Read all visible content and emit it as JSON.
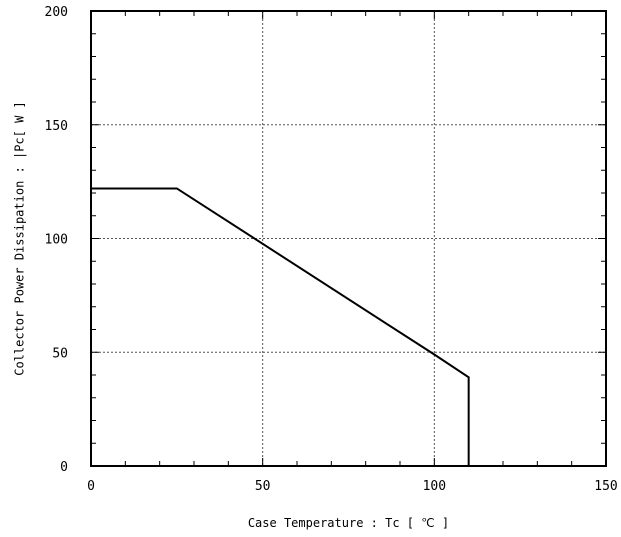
{
  "chart_data": {
    "type": "line",
    "title": "",
    "xlabel": "Case Temperature : Tc [ ℃ ]",
    "ylabel": "Collector Power Dissipation : |Pc[ W ]",
    "xlim": [
      0,
      150
    ],
    "ylim": [
      0,
      200
    ],
    "x_ticks": [
      0,
      50,
      100,
      150
    ],
    "y_ticks": [
      0,
      50,
      100,
      150,
      200
    ],
    "x_tick_labels": [
      "0",
      "50",
      "100",
      "150"
    ],
    "y_tick_labels": [
      "0",
      "50",
      "100",
      "150",
      "200"
    ],
    "grid": true,
    "legend": "none",
    "series": [
      {
        "x": [
          0,
          25,
          100,
          110,
          110
        ],
        "y": [
          122,
          122,
          49,
          39,
          0
        ],
        "color": "#000000"
      }
    ]
  }
}
